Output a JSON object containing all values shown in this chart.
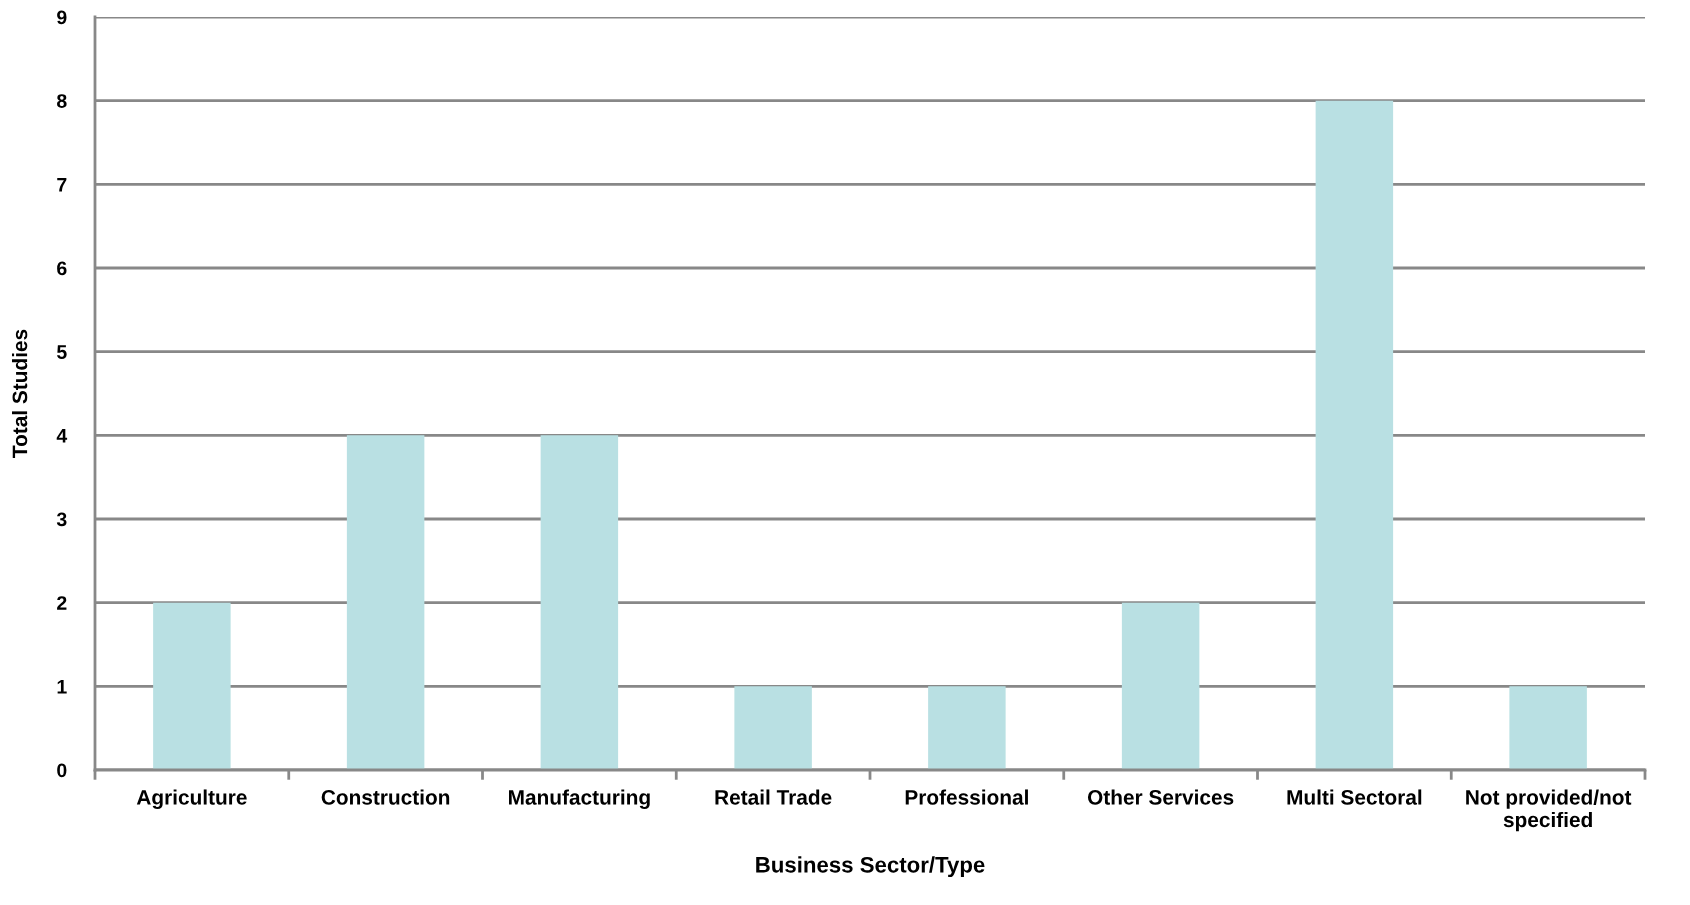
{
  "chart_data": {
    "type": "bar",
    "xlabel": "Business Sector/Type",
    "ylabel": "Total Studies",
    "categories": [
      "Agriculture",
      "Construction",
      "Manufacturing",
      "Retail Trade",
      "Professional",
      "Other Services",
      "Multi Sectoral",
      "Not provided/not\nspecified"
    ],
    "values": [
      2,
      4,
      4,
      1,
      1,
      2,
      8,
      1
    ],
    "color": "#b9e0e3",
    "ylim": [
      0,
      9
    ],
    "yticks": [
      0,
      1,
      2,
      3,
      4,
      5,
      6,
      7,
      8,
      9
    ],
    "grid": "y",
    "legend": false
  }
}
